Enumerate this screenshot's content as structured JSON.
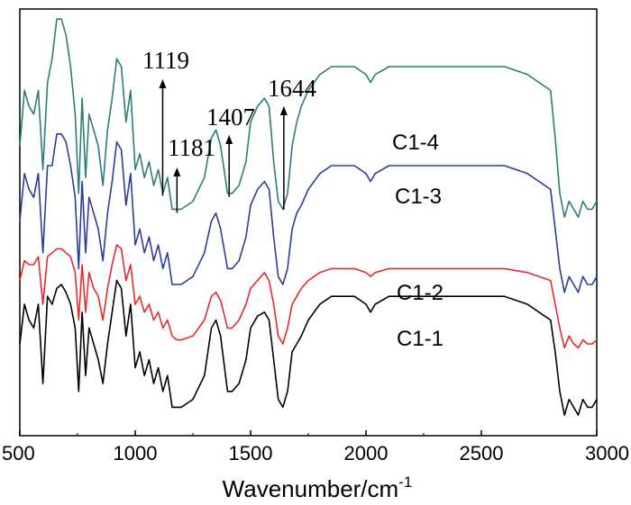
{
  "chart_data": {
    "type": "line",
    "title": "",
    "xlabel": "Wavenumber/cm",
    "xlabel_superscript": "-1",
    "ylabel": "",
    "xlim": [
      500,
      3000
    ],
    "xticks": [
      "500",
      "1000",
      "1500",
      "2000",
      "2500",
      "3000"
    ],
    "yticks_shown": false,
    "grid": false,
    "legend": "none",
    "series": [
      {
        "name": "C1-1",
        "color": "#000000",
        "offset": 0,
        "x": [
          500,
          520,
          540,
          560,
          580,
          600,
          620,
          640,
          660,
          680,
          700,
          720,
          740,
          755,
          770,
          785,
          800,
          820,
          840,
          860,
          880,
          900,
          920,
          940,
          960,
          980,
          1000,
          1020,
          1040,
          1060,
          1080,
          1100,
          1120,
          1140,
          1160,
          1180,
          1200,
          1250,
          1300,
          1330,
          1350,
          1370,
          1400,
          1420,
          1450,
          1480,
          1500,
          1530,
          1560,
          1580,
          1600,
          1620,
          1640,
          1660,
          1680,
          1700,
          1720,
          1750,
          1800,
          1850,
          1900,
          1950,
          2000,
          2020,
          2040,
          2100,
          2200,
          2300,
          2350,
          2400,
          2500,
          2600,
          2700,
          2750,
          2800,
          2820,
          2840,
          2860,
          2880,
          2900,
          2920,
          2940,
          2960,
          2980,
          3000
        ],
        "y": [
          20,
          30,
          26,
          24,
          30,
          10,
          32,
          30,
          34,
          35,
          33,
          30,
          24,
          8,
          28,
          12,
          24,
          20,
          16,
          10,
          20,
          28,
          36,
          34,
          22,
          30,
          14,
          18,
          12,
          16,
          10,
          14,
          8,
          12,
          4,
          4,
          4,
          6,
          12,
          24,
          26,
          22,
          8,
          8,
          10,
          16,
          24,
          27,
          28,
          26,
          16,
          6,
          4,
          8,
          18,
          20,
          22,
          26,
          30,
          32,
          32,
          32,
          30,
          28,
          30,
          32,
          32,
          32,
          32,
          32,
          32,
          32,
          30,
          28,
          26,
          18,
          8,
          2,
          6,
          4,
          2,
          6,
          4,
          4,
          6
        ]
      },
      {
        "name": "C1-2",
        "color": "#e8292a",
        "offset": 16,
        "x": [
          500,
          520,
          540,
          560,
          580,
          600,
          620,
          640,
          660,
          680,
          700,
          720,
          740,
          755,
          770,
          785,
          800,
          820,
          840,
          860,
          880,
          900,
          920,
          940,
          960,
          980,
          1000,
          1020,
          1040,
          1060,
          1080,
          1100,
          1120,
          1140,
          1160,
          1180,
          1200,
          1250,
          1300,
          1330,
          1350,
          1370,
          1400,
          1420,
          1450,
          1480,
          1500,
          1530,
          1560,
          1580,
          1600,
          1620,
          1640,
          1660,
          1680,
          1700,
          1720,
          1750,
          1800,
          1850,
          1900,
          1950,
          2000,
          2020,
          2040,
          2100,
          2200,
          2300,
          2350,
          2400,
          2500,
          2600,
          2700,
          2750,
          2800,
          2820,
          2840,
          2860,
          2880,
          2900,
          2920,
          2940,
          2960,
          2980,
          3000
        ],
        "y": [
          20,
          25,
          24,
          24,
          26,
          14,
          26,
          27,
          28,
          28,
          27,
          26,
          22,
          10,
          24,
          12,
          22,
          18,
          16,
          10,
          18,
          24,
          29,
          28,
          20,
          24,
          14,
          16,
          12,
          14,
          10,
          12,
          8,
          10,
          6,
          5,
          5,
          6,
          10,
          16,
          17,
          15,
          8,
          8,
          10,
          14,
          18,
          20,
          22,
          20,
          14,
          6,
          4,
          8,
          14,
          16,
          18,
          20,
          22,
          23,
          23,
          23,
          22,
          21,
          22,
          23,
          23,
          23,
          23,
          23,
          23,
          23,
          22,
          21,
          20,
          14,
          8,
          3,
          6,
          4,
          3,
          5,
          4,
          4,
          5
        ]
      },
      {
        "name": "C1-3",
        "color": "#2b3c9e",
        "offset": 31,
        "x": [
          500,
          520,
          540,
          560,
          580,
          600,
          620,
          640,
          660,
          680,
          700,
          720,
          740,
          755,
          770,
          785,
          800,
          820,
          840,
          860,
          880,
          900,
          920,
          940,
          960,
          980,
          1000,
          1020,
          1040,
          1060,
          1080,
          1100,
          1120,
          1140,
          1160,
          1180,
          1200,
          1250,
          1300,
          1330,
          1350,
          1370,
          1400,
          1420,
          1450,
          1480,
          1500,
          1530,
          1560,
          1580,
          1600,
          1620,
          1640,
          1660,
          1680,
          1700,
          1720,
          1750,
          1800,
          1850,
          1900,
          1950,
          2000,
          2020,
          2040,
          2100,
          2200,
          2300,
          2350,
          2400,
          2500,
          2600,
          2700,
          2750,
          2800,
          2820,
          2840,
          2860,
          2880,
          2900,
          2920,
          2940,
          2960,
          2980,
          3000
        ],
        "y": [
          20,
          32,
          28,
          26,
          32,
          12,
          34,
          34,
          42,
          42,
          40,
          34,
          26,
          8,
          30,
          12,
          26,
          22,
          18,
          10,
          22,
          30,
          40,
          38,
          24,
          32,
          14,
          18,
          12,
          16,
          10,
          14,
          8,
          12,
          4,
          4,
          4,
          6,
          12,
          20,
          22,
          18,
          8,
          8,
          10,
          16,
          24,
          28,
          30,
          28,
          16,
          6,
          4,
          8,
          18,
          22,
          24,
          28,
          32,
          34,
          34,
          34,
          32,
          30,
          32,
          34,
          34,
          34,
          34,
          34,
          34,
          34,
          32,
          30,
          28,
          18,
          8,
          2,
          6,
          4,
          2,
          6,
          4,
          4,
          6
        ]
      },
      {
        "name": "C1-4",
        "color": "#2e7d78",
        "offset": 50,
        "x": [
          500,
          520,
          540,
          560,
          580,
          600,
          620,
          640,
          660,
          680,
          700,
          720,
          740,
          755,
          770,
          785,
          800,
          820,
          840,
          860,
          880,
          900,
          920,
          940,
          960,
          980,
          1000,
          1020,
          1040,
          1060,
          1080,
          1100,
          1120,
          1140,
          1160,
          1180,
          1200,
          1250,
          1300,
          1330,
          1350,
          1370,
          1400,
          1420,
          1450,
          1480,
          1500,
          1530,
          1560,
          1580,
          1600,
          1620,
          1640,
          1660,
          1680,
          1700,
          1720,
          1750,
          1800,
          1850,
          1900,
          1950,
          2000,
          2020,
          2040,
          2100,
          2200,
          2300,
          2350,
          2400,
          2500,
          2600,
          2700,
          2750,
          2800,
          2820,
          2840,
          2860,
          2880,
          2900,
          2920,
          2940,
          2960,
          2980,
          3000
        ],
        "y": [
          20,
          34,
          30,
          28,
          34,
          14,
          36,
          42,
          52,
          52,
          48,
          40,
          28,
          8,
          32,
          12,
          28,
          24,
          20,
          10,
          24,
          32,
          42,
          40,
          26,
          34,
          14,
          18,
          12,
          16,
          10,
          14,
          8,
          12,
          4,
          4,
          4,
          6,
          12,
          22,
          24,
          20,
          8,
          8,
          10,
          16,
          26,
          30,
          32,
          30,
          16,
          6,
          4,
          8,
          20,
          26,
          30,
          34,
          38,
          40,
          40,
          40,
          38,
          36,
          38,
          40,
          40,
          40,
          40,
          40,
          40,
          40,
          38,
          36,
          34,
          22,
          8,
          2,
          6,
          4,
          2,
          6,
          4,
          4,
          6
        ]
      }
    ],
    "annotations": [
      {
        "text": "1119",
        "x": 1119
      },
      {
        "text": "1181",
        "x": 1181
      },
      {
        "text": "1407",
        "x": 1407
      },
      {
        "text": "1644",
        "x": 1644
      }
    ]
  }
}
